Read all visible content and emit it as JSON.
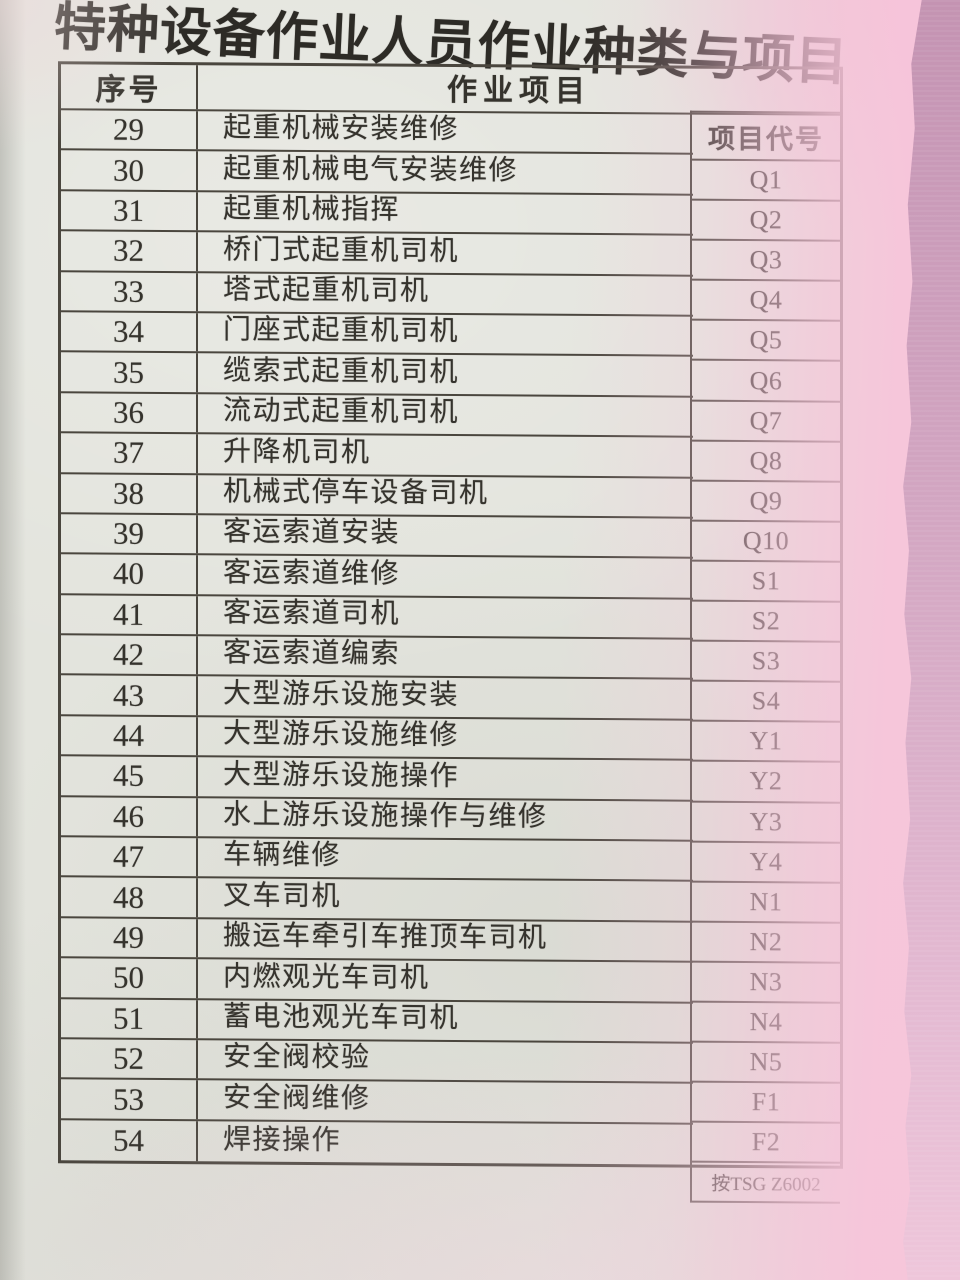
{
  "title": "特种设备作业人员作业种类与项目",
  "table": {
    "col_headers": {
      "index": "序号",
      "project": "作业项目",
      "code": "项目代号"
    },
    "rows": [
      {
        "no": "29",
        "project": "起重机械安装维修"
      },
      {
        "no": "30",
        "project": "起重机械电气安装维修"
      },
      {
        "no": "31",
        "project": "起重机械指挥"
      },
      {
        "no": "32",
        "project": "桥门式起重机司机"
      },
      {
        "no": "33",
        "project": "塔式起重机司机"
      },
      {
        "no": "34",
        "project": "门座式起重机司机"
      },
      {
        "no": "35",
        "project": "缆索式起重机司机"
      },
      {
        "no": "36",
        "project": "流动式起重机司机"
      },
      {
        "no": "37",
        "project": "升降机司机"
      },
      {
        "no": "38",
        "project": "机械式停车设备司机"
      },
      {
        "no": "39",
        "project": "客运索道安装"
      },
      {
        "no": "40",
        "project": "客运索道维修"
      },
      {
        "no": "41",
        "project": "客运索道司机"
      },
      {
        "no": "42",
        "project": "客运索道编索"
      },
      {
        "no": "43",
        "project": "大型游乐设施安装"
      },
      {
        "no": "44",
        "project": "大型游乐设施维修"
      },
      {
        "no": "45",
        "project": "大型游乐设施操作"
      },
      {
        "no": "46",
        "project": "水上游乐设施操作与维修"
      },
      {
        "no": "47",
        "project": "车辆维修"
      },
      {
        "no": "48",
        "project": "叉车司机"
      },
      {
        "no": "49",
        "project": "搬运车牵引车推顶车司机"
      },
      {
        "no": "50",
        "project": "内燃观光车司机"
      },
      {
        "no": "51",
        "project": "蓄电池观光车司机"
      },
      {
        "no": "52",
        "project": "安全阀校验"
      },
      {
        "no": "53",
        "project": "安全阀维修"
      },
      {
        "no": "54",
        "project": "焊接操作"
      }
    ],
    "codes": [
      "Q1",
      "Q2",
      "Q3",
      "Q4",
      "Q5",
      "Q6",
      "Q7",
      "Q8",
      "Q9",
      "Q10",
      "S1",
      "S2",
      "S3",
      "S4",
      "Y1",
      "Y2",
      "Y3",
      "Y4",
      "N1",
      "N2",
      "N3",
      "N4",
      "N5",
      "F1",
      "F2",
      "按TSG Z6002"
    ]
  },
  "colors": {
    "paper": "#e3e4dd",
    "ink": "#35332d",
    "table_border": "#4a463e",
    "pink_wash": "#f5c6da",
    "cover_pink": "#d2a5c1"
  }
}
